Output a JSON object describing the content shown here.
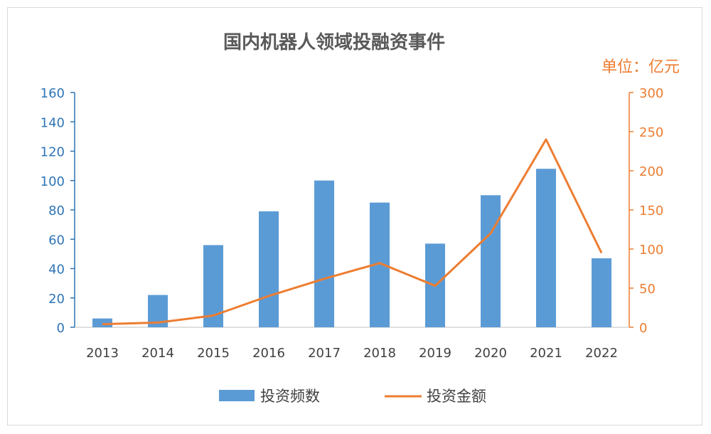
{
  "chart_data": {
    "type": "bar+line",
    "title": "国内机器人领域投融资事件",
    "unit_label": "单位：亿元",
    "categories": [
      "2013",
      "2014",
      "2015",
      "2016",
      "2017",
      "2018",
      "2019",
      "2020",
      "2021",
      "2022"
    ],
    "series": [
      {
        "name": "投资频数",
        "type": "bar",
        "axis": "left",
        "values": [
          6,
          22,
          56,
          79,
          100,
          85,
          57,
          90,
          108,
          47
        ]
      },
      {
        "name": "投资金额",
        "type": "line",
        "axis": "right",
        "values": [
          4,
          6,
          15,
          40,
          62,
          82,
          53,
          120,
          240,
          95
        ]
      }
    ],
    "y_left": {
      "min": 0,
      "max": 160,
      "ticks": [
        0,
        20,
        40,
        60,
        80,
        100,
        120,
        140,
        160
      ],
      "color": "#2E75B6"
    },
    "y_right": {
      "min": 0,
      "max": 300,
      "ticks": [
        0,
        50,
        100,
        150,
        200,
        250,
        300
      ],
      "color": "#ED7D31"
    },
    "colors": {
      "bar": "#5B9BD5",
      "line": "#ED7D31"
    },
    "grid": false,
    "legend": "bottom"
  }
}
